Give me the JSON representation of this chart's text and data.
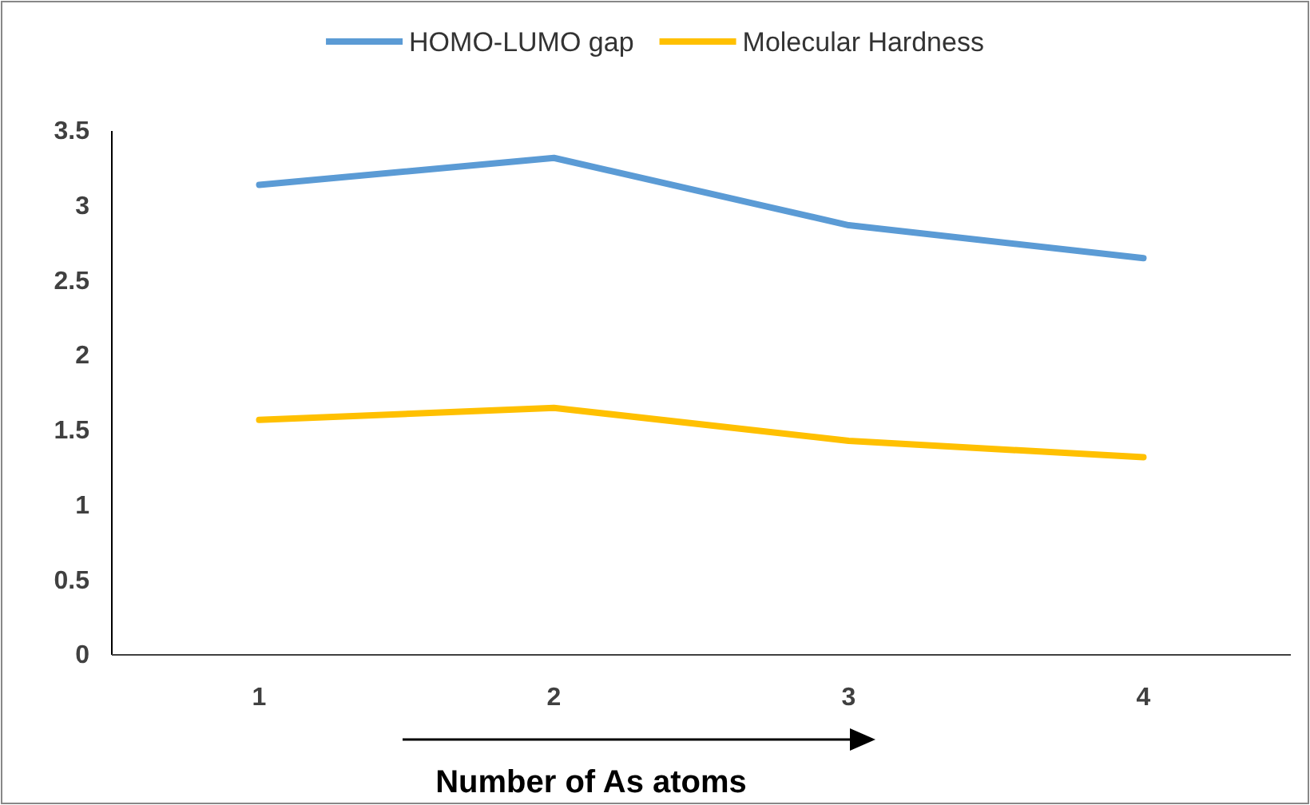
{
  "chart_data": {
    "type": "line",
    "xlabel": "Number of As atoms",
    "categories": [
      "1",
      "2",
      "3",
      "4"
    ],
    "series": [
      {
        "name": "HOMO-LUMO gap",
        "color": "#5b9bd5",
        "values": [
          3.14,
          3.32,
          2.87,
          2.65
        ]
      },
      {
        "name": "Molecular Hardness",
        "color": "#ffc000",
        "values": [
          1.57,
          1.65,
          1.43,
          1.32
        ]
      }
    ],
    "ylim": [
      0,
      3.5
    ],
    "yticks": [
      0,
      0.5,
      1,
      1.5,
      2,
      2.5,
      3,
      3.5
    ],
    "legend": "top",
    "grid": false,
    "marker": "none",
    "line_style": "solid"
  }
}
